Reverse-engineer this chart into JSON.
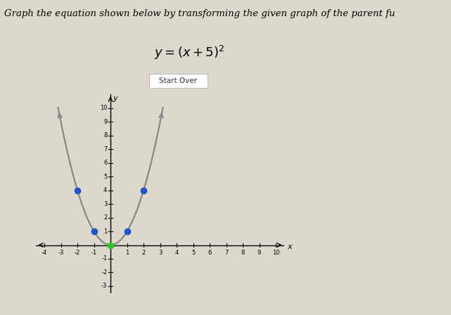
{
  "title_line1": "Graph the equation shown below by transforming the given graph of the parent fu",
  "background_color": "#ddd8cc",
  "plot_bg_color": "#ddd8cc",
  "xlim": [
    -4.5,
    10.5
  ],
  "ylim": [
    -3.5,
    11.0
  ],
  "xticks": [
    -4,
    -3,
    -2,
    -1,
    1,
    2,
    3,
    4,
    5,
    6,
    7,
    8,
    9,
    10
  ],
  "yticks": [
    -3,
    -2,
    -1,
    1,
    2,
    3,
    4,
    5,
    6,
    7,
    8,
    9,
    10
  ],
  "curve_color": "#888888",
  "blue_dot_color": "#2255cc",
  "green_dot_color": "#22cc22",
  "blue_dots": [
    [
      -2,
      4
    ],
    [
      -1,
      1
    ],
    [
      1,
      1
    ],
    [
      2,
      4
    ]
  ],
  "green_dot": [
    0,
    0
  ],
  "font_size_title": 9.5,
  "axis_label_x": "x",
  "axis_label_y": "y",
  "tick_fontsize": 6.0
}
